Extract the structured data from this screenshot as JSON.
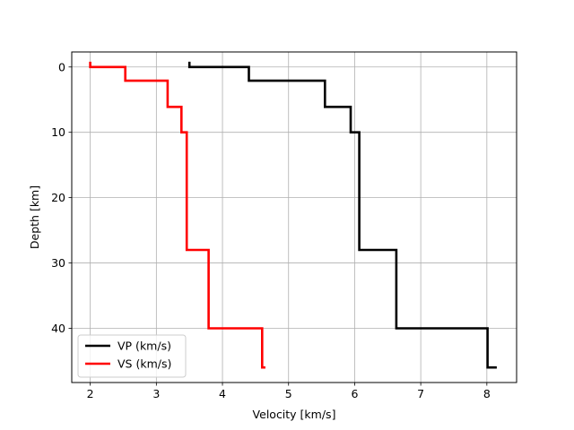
{
  "chart_data": {
    "type": "line",
    "title": "",
    "xlabel": "Velocity [km/s]",
    "ylabel": "Depth [km]",
    "xlim": [
      1.72,
      8.45
    ],
    "ylim": [
      48.3,
      -2.3
    ],
    "y_inverted": true,
    "grid": true,
    "legend_position": "lower-left",
    "xticks": [
      2,
      3,
      4,
      5,
      6,
      7,
      8
    ],
    "yticks": [
      0,
      10,
      20,
      30,
      40
    ],
    "series": [
      {
        "name": "VP (km/s)",
        "color": "#000000",
        "points": [
          [
            3.5,
            -0.8
          ],
          [
            3.5,
            0
          ],
          [
            4.4,
            0
          ],
          [
            4.4,
            2.1
          ],
          [
            5.55,
            2.1
          ],
          [
            5.55,
            6.1
          ],
          [
            5.94,
            6.1
          ],
          [
            5.94,
            10
          ],
          [
            6.07,
            10
          ],
          [
            6.07,
            28
          ],
          [
            6.63,
            28
          ],
          [
            6.63,
            40
          ],
          [
            8.01,
            40
          ],
          [
            8.01,
            46
          ],
          [
            8.15,
            46
          ]
        ]
      },
      {
        "name": "VS (km/s)",
        "color": "#ff0000",
        "points": [
          [
            2.0,
            -0.8
          ],
          [
            2.0,
            0
          ],
          [
            2.53,
            0
          ],
          [
            2.53,
            2.1
          ],
          [
            3.17,
            2.1
          ],
          [
            3.17,
            6.1
          ],
          [
            3.38,
            6.1
          ],
          [
            3.38,
            10
          ],
          [
            3.46,
            10
          ],
          [
            3.46,
            28
          ],
          [
            3.79,
            28
          ],
          [
            3.79,
            40
          ],
          [
            4.6,
            40
          ],
          [
            4.6,
            46
          ],
          [
            4.65,
            46
          ]
        ]
      }
    ]
  }
}
